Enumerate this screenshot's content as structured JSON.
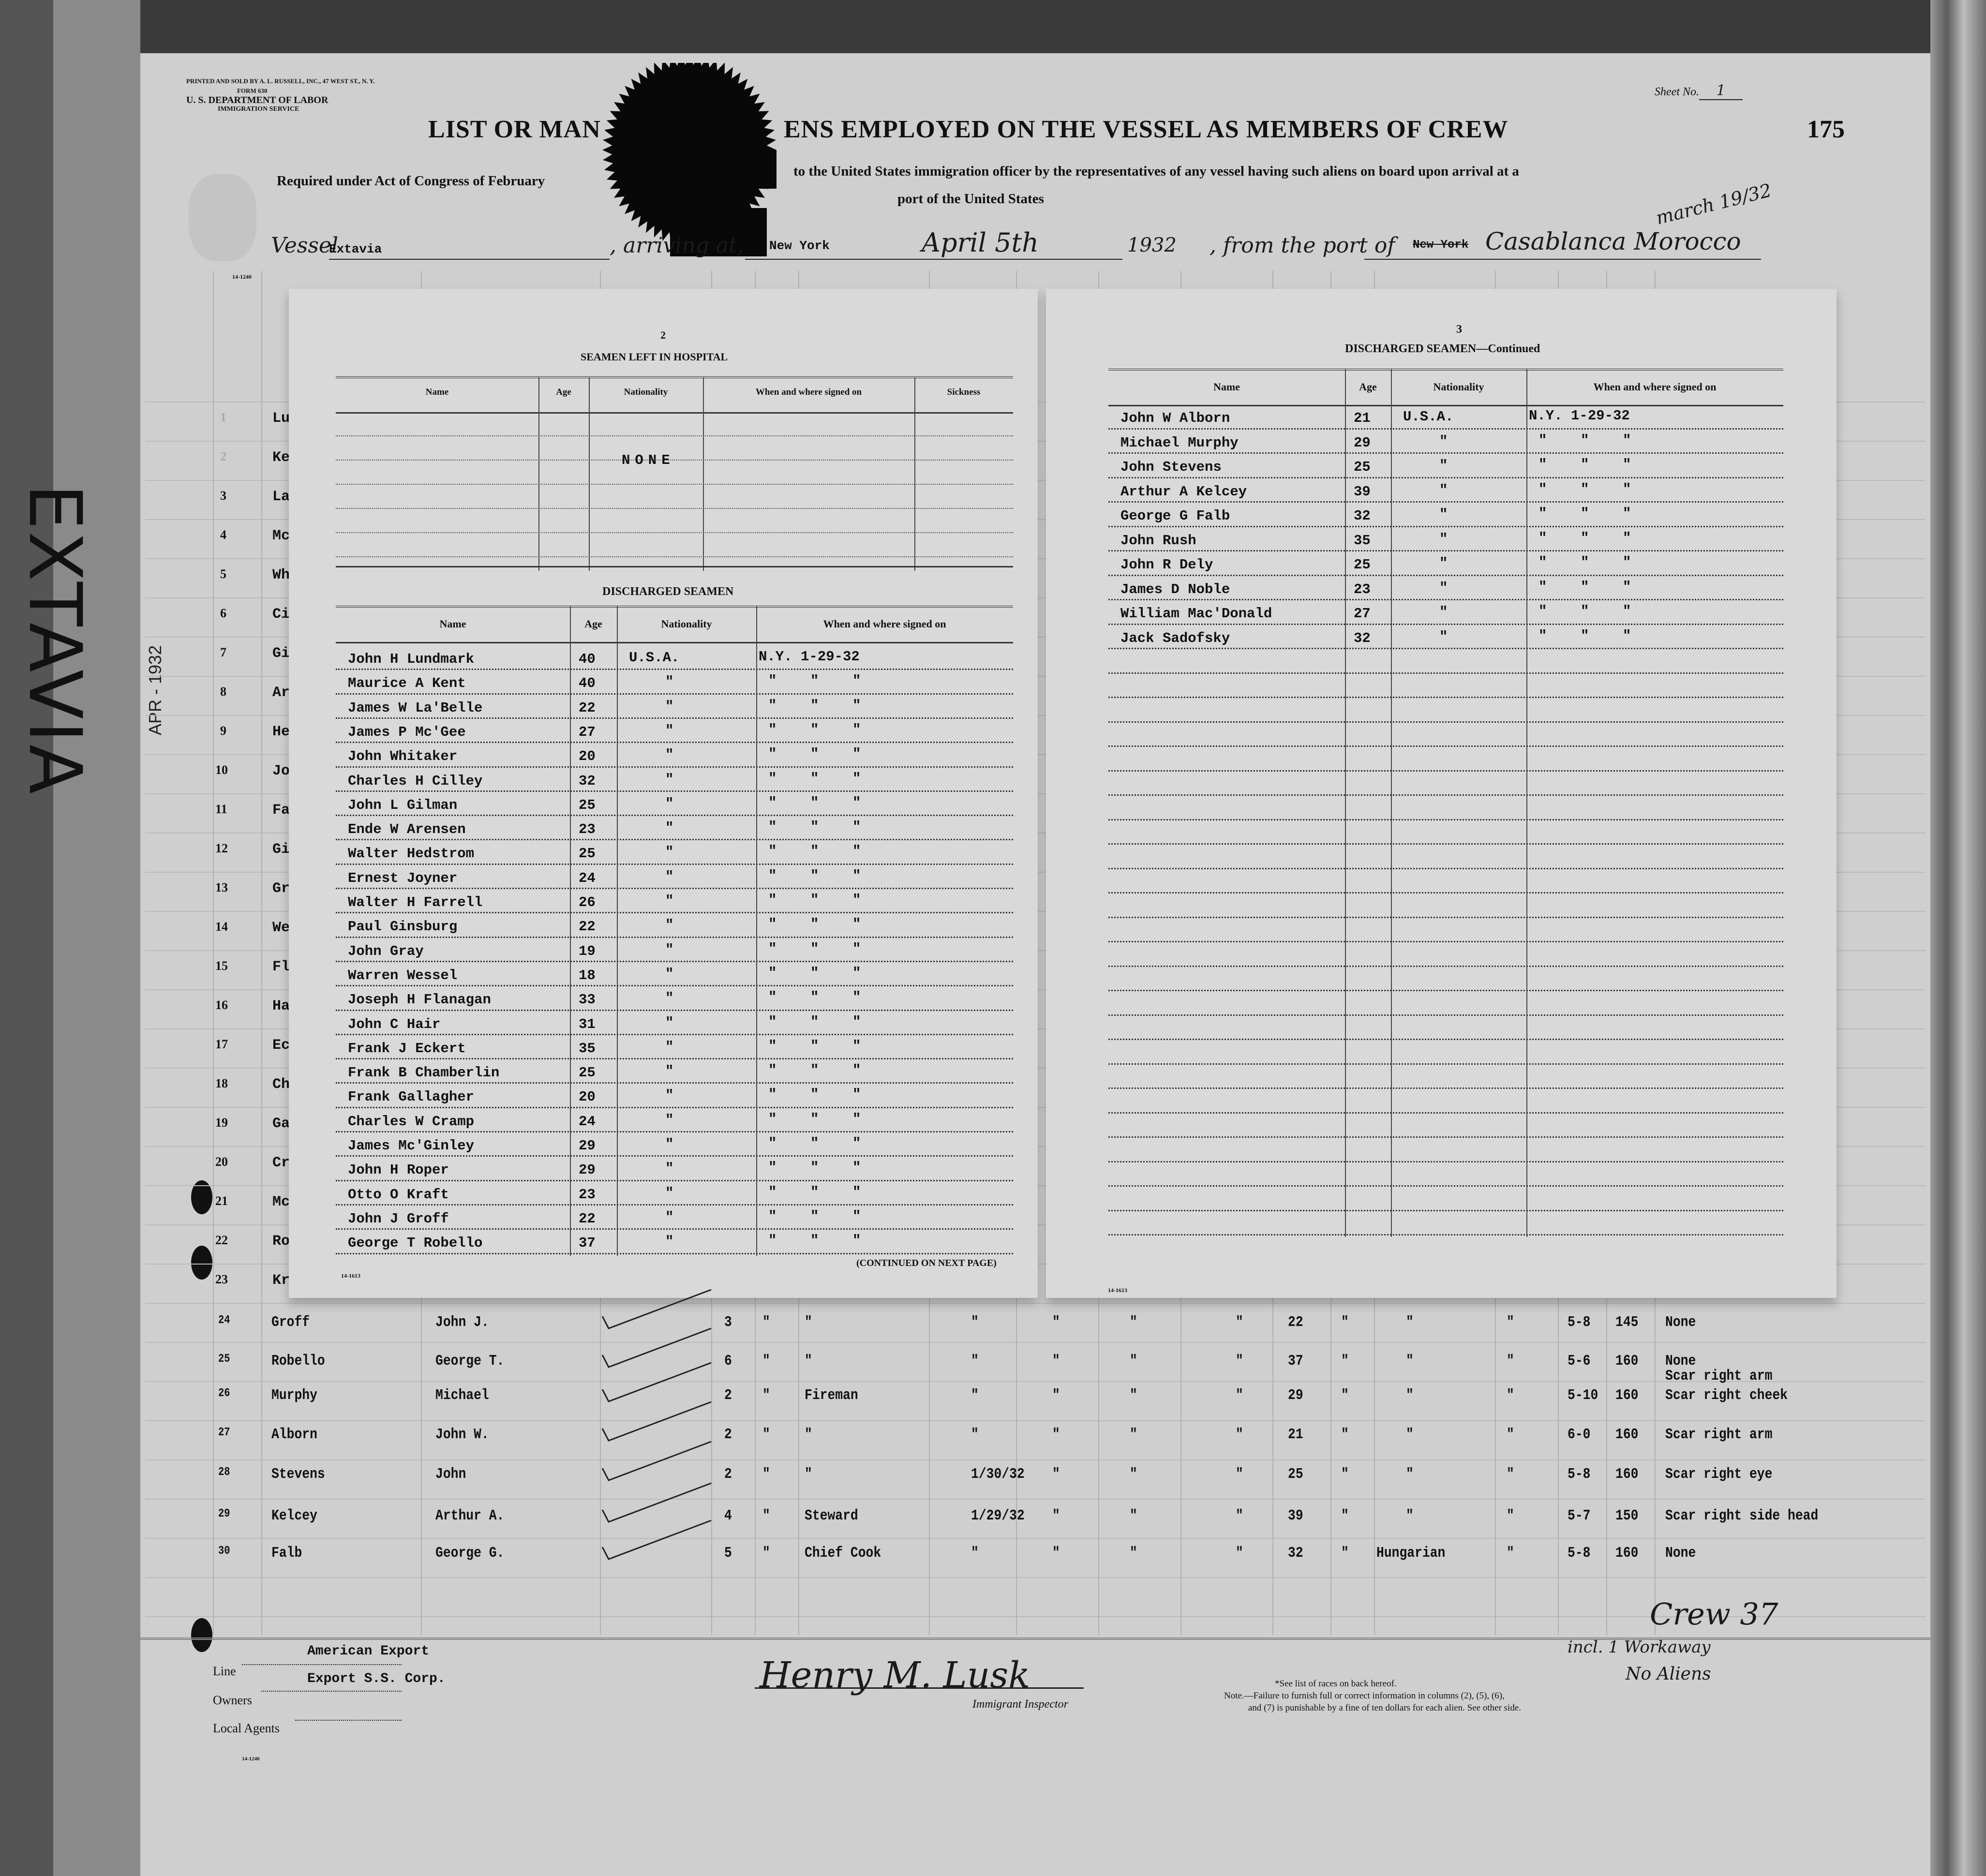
{
  "form_header": {
    "printer": "PRINTED AND SOLD BY A. L. RUSSELL, INC., 47 WEST ST., N. Y.",
    "form_no": "FORM 630",
    "department": "U. S. DEPARTMENT OF LABOR",
    "service": "IMMIGRATION SERVICE",
    "sheet_label": "Sheet No.",
    "sheet_no": "1",
    "title_left": "LIST OR MAN",
    "title_right": "ENS EMPLOYED ON THE VESSEL AS MEMBERS OF CREW",
    "page_no": "175",
    "subtitle_left": "Required under Act of Congress of February",
    "subtitle_right": "to the United States immigration officer by the representatives of any vessel having such aliens on board upon arrival at a",
    "subtitle_line2": "port of the United States",
    "form_code": "14-1240"
  },
  "vessel_line": {
    "vessel_label": "Vessel",
    "vessel": "Extavia",
    "arriving_label": ", arriving at,",
    "arriving_at": "New York",
    "date_hand": "April 5th",
    "year": "1932",
    "from_label": ", from the port of",
    "port_struck": "New York",
    "port_hand": "Casablanca Morocco",
    "date_note_hand": "march 19/32"
  },
  "side_annotations": {
    "vessel_name_hand": "EXTAVIA",
    "stamp_date": "APR - 1932"
  },
  "background_rows_partial": {
    "numbers": [
      "1",
      "2",
      "3",
      "4",
      "5",
      "6",
      "7",
      "8",
      "9",
      "10",
      "11",
      "12",
      "13",
      "14",
      "15",
      "16",
      "17",
      "18",
      "19",
      "20",
      "21",
      "22",
      "23"
    ],
    "surname_fragments": [
      "Lu",
      "Ke",
      "La",
      "Mc",
      "Wh",
      "Ci",
      "Gi",
      "Ar",
      "He",
      "Jo",
      "Fa",
      "Gi",
      "Gr",
      "We",
      "Fl",
      "Ha",
      "Ec",
      "Ch",
      "Ga",
      "Cr",
      "Mc",
      "Ro",
      "Kr"
    ]
  },
  "hospital_section": {
    "number": "2",
    "title": "SEAMEN LEFT IN HOSPITAL",
    "headers": [
      "Name",
      "Age",
      "Nationality",
      "When and where signed on",
      "Sickness"
    ],
    "entry": "NONE"
  },
  "discharged_section": {
    "title": "DISCHARGED SEAMEN",
    "headers": [
      "Name",
      "Age",
      "Nationality",
      "When and where signed on"
    ],
    "rows": [
      {
        "name": "John H Lundmark",
        "age": "40",
        "nationality": "U.S.A.",
        "signed": "N.Y. 1-29-32"
      },
      {
        "name": "Maurice A Kent",
        "age": "40",
        "nationality": "\"",
        "signed": "\"    \"    \""
      },
      {
        "name": "James W La'Belle",
        "age": "22",
        "nationality": "\"",
        "signed": "\"    \"    \""
      },
      {
        "name": "James P Mc'Gee",
        "age": "27",
        "nationality": "\"",
        "signed": "\"    \"    \""
      },
      {
        "name": "John Whitaker",
        "age": "20",
        "nationality": "\"",
        "signed": "\"    \"    \""
      },
      {
        "name": "Charles H Cilley",
        "age": "32",
        "nationality": "\"",
        "signed": "\"    \"    \""
      },
      {
        "name": "John L Gilman",
        "age": "25",
        "nationality": "\"",
        "signed": "\"    \"    \""
      },
      {
        "name": "Ende W Arensen",
        "age": "23",
        "nationality": "\"",
        "signed": "\"    \"    \""
      },
      {
        "name": "Walter Hedstrom",
        "age": "25",
        "nationality": "\"",
        "signed": "\"    \"    \""
      },
      {
        "name": "Ernest Joyner",
        "age": "24",
        "nationality": "\"",
        "signed": "\"    \"    \""
      },
      {
        "name": "Walter H Farrell",
        "age": "26",
        "nationality": "\"",
        "signed": "\"    \"    \""
      },
      {
        "name": "Paul Ginsburg",
        "age": "22",
        "nationality": "\"",
        "signed": "\"    \"    \""
      },
      {
        "name": "John Gray",
        "age": "19",
        "nationality": "\"",
        "signed": "\"    \"    \""
      },
      {
        "name": "Warren Wessel",
        "age": "18",
        "nationality": "\"",
        "signed": "\"    \"    \""
      },
      {
        "name": "Joseph H Flanagan",
        "age": "33",
        "nationality": "\"",
        "signed": "\"    \"    \""
      },
      {
        "name": "John C Hair",
        "age": "31",
        "nationality": "\"",
        "signed": "\"    \"    \""
      },
      {
        "name": "Frank J Eckert",
        "age": "35",
        "nationality": "\"",
        "signed": "\"    \"    \""
      },
      {
        "name": "Frank B Chamberlin",
        "age": "25",
        "nationality": "\"",
        "signed": "\"    \"    \""
      },
      {
        "name": "Frank Gallagher",
        "age": "20",
        "nationality": "\"",
        "signed": "\"    \"    \""
      },
      {
        "name": "Charles W Cramp",
        "age": "24",
        "nationality": "\"",
        "signed": "\"    \"    \""
      },
      {
        "name": "James Mc'Ginley",
        "age": "29",
        "nationality": "\"",
        "signed": "\"    \"    \""
      },
      {
        "name": "John H Roper",
        "age": "29",
        "nationality": "\"",
        "signed": "\"    \"    \""
      },
      {
        "name": "Otto O Kraft",
        "age": "23",
        "nationality": "\"",
        "signed": "\"    \"    \""
      },
      {
        "name": "John J Groff",
        "age": "22",
        "nationality": "\"",
        "signed": "\"    \"    \""
      },
      {
        "name": "George T Robello",
        "age": "37",
        "nationality": "\"",
        "signed": "\"    \"    \""
      }
    ],
    "continued": "(CONTINUED ON NEXT PAGE)",
    "form_code": "14-1613"
  },
  "discharged_continued_section": {
    "number": "3",
    "title": "DISCHARGED SEAMEN—Continued",
    "headers": [
      "Name",
      "Age",
      "Nationality",
      "When and where signed on"
    ],
    "rows": [
      {
        "name": "John W Alborn",
        "age": "21",
        "nationality": "U.S.A.",
        "signed": "N.Y. 1-29-32"
      },
      {
        "name": "Michael Murphy",
        "age": "29",
        "nationality": "\"",
        "signed": "\"    \"    \""
      },
      {
        "name": "John Stevens",
        "age": "25",
        "nationality": "\"",
        "signed": "\"    \"    \""
      },
      {
        "name": "Arthur A Kelcey",
        "age": "39",
        "nationality": "\"",
        "signed": "\"    \"    \""
      },
      {
        "name": "George G Falb",
        "age": "32",
        "nationality": "\"",
        "signed": "\"    \"    \""
      },
      {
        "name": "John Rush",
        "age": "35",
        "nationality": "\"",
        "signed": "\"    \"    \""
      },
      {
        "name": "John R Dely",
        "age": "25",
        "nationality": "\"",
        "signed": "\"    \"    \""
      },
      {
        "name": "James D Noble",
        "age": "23",
        "nationality": "\"",
        "signed": "\"    \"    \""
      },
      {
        "name": "William Mac'Donald",
        "age": "27",
        "nationality": "\"",
        "signed": "\"    \"    \""
      },
      {
        "name": "Jack Sadofsky",
        "age": "32",
        "nationality": "\"",
        "signed": "\"    \"    \""
      }
    ],
    "form_code": "14-1613"
  },
  "crew_rows": [
    {
      "no": "24",
      "surname": "Groff",
      "given": "John J.",
      "class": "3",
      "d1": "\"",
      "occupation": "\"",
      "date": "\"",
      "d2": "\"",
      "d3": "\"",
      "d4": "\"",
      "age": "22",
      "d5": "\"",
      "nationality": "\"",
      "d6": "\"",
      "height": "5-8",
      "weight": "145",
      "marks": "None",
      "marks2": ""
    },
    {
      "no": "25",
      "surname": "Robello",
      "given": "George T.",
      "class": "6",
      "d1": "\"",
      "occupation": "\"",
      "date": "\"",
      "d2": "\"",
      "d3": "\"",
      "d4": "\"",
      "age": "37",
      "d5": "\"",
      "nationality": "\"",
      "d6": "\"",
      "height": "5-6",
      "weight": "160",
      "marks": "None",
      "marks2": ""
    },
    {
      "no": "26",
      "surname": "Murphy",
      "given": "Michael",
      "class": "2",
      "d1": "\"",
      "occupation": "Fireman",
      "date": "\"",
      "d2": "\"",
      "d3": "\"",
      "d4": "\"",
      "age": "29",
      "d5": "\"",
      "nationality": "\"",
      "d6": "\"",
      "height": "5-10",
      "weight": "160",
      "marks": "Scar right cheek",
      "marks2": "Scar right arm"
    },
    {
      "no": "27",
      "surname": "Alborn",
      "given": "John W.",
      "class": "2",
      "d1": "\"",
      "occupation": "\"",
      "date": "\"",
      "d2": "\"",
      "d3": "\"",
      "d4": "\"",
      "age": "21",
      "d5": "\"",
      "nationality": "\"",
      "d6": "\"",
      "height": "6-0",
      "weight": "160",
      "marks": "Scar right arm",
      "marks2": ""
    },
    {
      "no": "28",
      "surname": "Stevens",
      "given": "John",
      "class": "2",
      "d1": "\"",
      "occupation": "\"",
      "date": "1/30/32",
      "d2": "\"",
      "d3": "\"",
      "d4": "\"",
      "age": "25",
      "d5": "\"",
      "nationality": "\"",
      "d6": "\"",
      "height": "5-8",
      "weight": "160",
      "marks": "Scar right eye",
      "marks2": ""
    },
    {
      "no": "29",
      "surname": "Kelcey",
      "given": "Arthur A.",
      "class": "4",
      "d1": "\"",
      "occupation": "Steward",
      "date": "1/29/32",
      "d2": "\"",
      "d3": "\"",
      "d4": "\"",
      "age": "39",
      "d5": "\"",
      "nationality": "\"",
      "d6": "\"",
      "height": "5-7",
      "weight": "150",
      "marks": "Scar right side head",
      "marks2": ""
    },
    {
      "no": "30",
      "surname": "Falb",
      "given": "George G.",
      "class": "5",
      "d1": "\"",
      "occupation": "Chief Cook",
      "date": "\"",
      "d2": "\"",
      "d3": "\"",
      "d4": "\"",
      "age": "32",
      "d5": "\"",
      "nationality": "Hungarian",
      "d6": "\"",
      "height": "5-8",
      "weight": "160",
      "marks": "None",
      "marks2": ""
    }
  ],
  "footer": {
    "line_label": "Line",
    "line": "American Export",
    "owners_label": "Owners",
    "owners": "Export S.S. Corp.",
    "agents_label": "Local Agents",
    "agents": "",
    "signature_hand": "Henry M. Lusk",
    "signature_title": "Immigrant Inspector",
    "races_note": "*See list of races on back hereof.",
    "note_line1": "Note.—Failure to furnish full or correct information in columns (2), (5), (6),",
    "note_line2": "and (7) is punishable by a fine of ten dollars for each alien. See other side.",
    "total_hand": "Crew 37",
    "total_note1_hand": "incl. 1 Workaway",
    "total_note2_hand": "No Aliens",
    "form_code": "14-1240"
  }
}
